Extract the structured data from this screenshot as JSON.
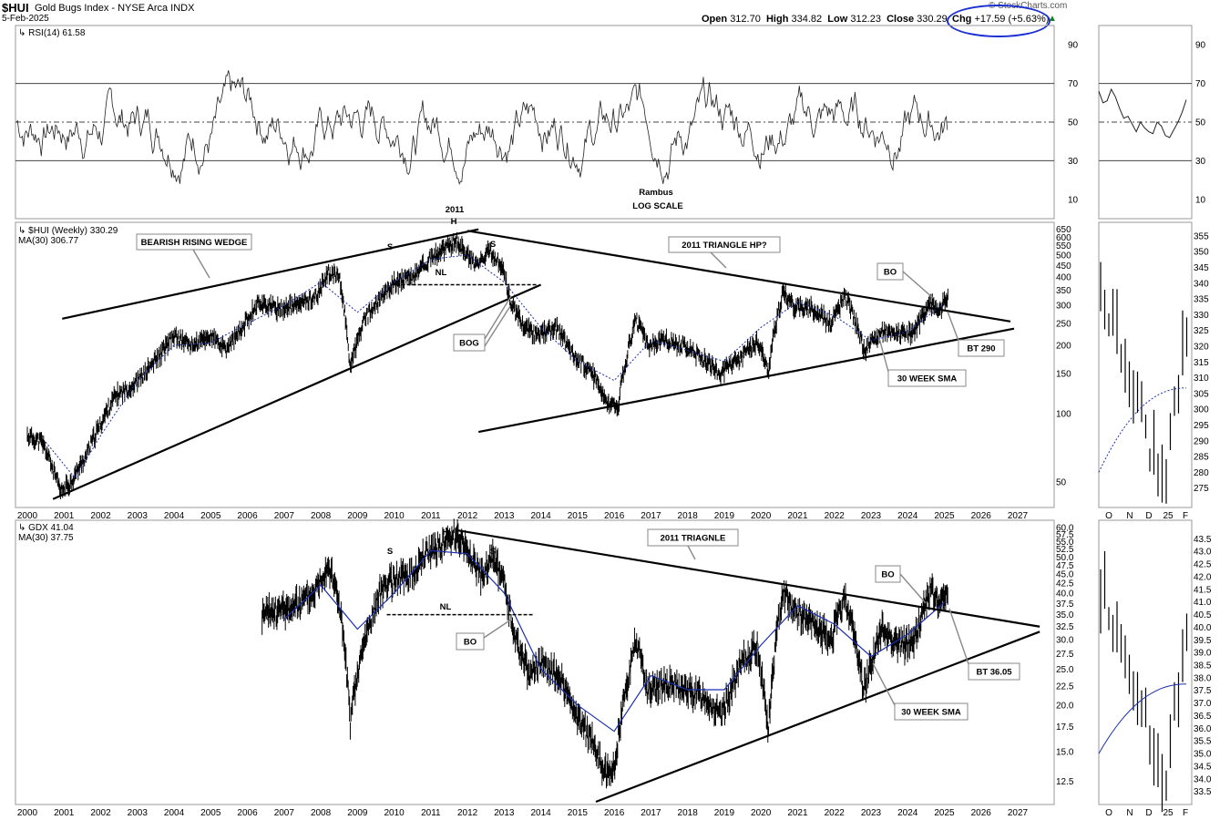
{
  "header": {
    "symbol": "$HUI",
    "description": "Gold Bugs Index - NYSE Arca INDX",
    "date": "5-Feb-2025",
    "open_label": "Open",
    "open": "312.70",
    "high_label": "High",
    "high": "334.82",
    "low_label": "Low",
    "low": "312.23",
    "close_label": "Close",
    "close": "330.29",
    "chg_label": "Chg",
    "chg": "+17.59 (+5.63%)",
    "brand": "© StockCharts.com",
    "accent_color": "#1a2fd0"
  },
  "chart_data": [
    {
      "type": "line",
      "panel": "rsi",
      "legend": "RSI(14) 61.58",
      "y_ticks": [
        90,
        70,
        50,
        30,
        10
      ],
      "ylim": [
        0,
        100
      ],
      "reference_lines": [
        70,
        50,
        30
      ],
      "annotations": [
        "Rambus",
        "LOG SCALE"
      ],
      "recent_values": [
        66,
        60,
        61,
        67,
        63,
        57,
        52,
        53,
        49,
        45,
        50,
        47,
        45,
        44,
        50,
        48,
        43,
        42,
        46,
        50,
        55,
        61.58
      ],
      "x_ticks": []
    },
    {
      "type": "ohlc",
      "panel": "hui",
      "legend": "$HUI (Weekly) 330.29",
      "ma_legend": "MA(30) 306.77",
      "scale": "log",
      "y_ticks": [
        650,
        600,
        550,
        500,
        450,
        400,
        350,
        300,
        250,
        200,
        150,
        100,
        50
      ],
      "ylim": [
        40,
        660
      ],
      "x_ticks": [
        "2000",
        "2001",
        "2002",
        "2003",
        "2004",
        "2005",
        "2006",
        "2007",
        "2008",
        "2009",
        "2010",
        "2011",
        "2012",
        "2013",
        "2014",
        "2015",
        "2016",
        "2017",
        "2018",
        "2019",
        "2020",
        "2021",
        "2022",
        "2023",
        "2024",
        "2025",
        "2026",
        "2027"
      ],
      "path_points": [
        [
          2000,
          80
        ],
        [
          2000.4,
          75
        ],
        [
          2000.9,
          45
        ],
        [
          2001.2,
          50
        ],
        [
          2001.6,
          65
        ],
        [
          2002,
          90
        ],
        [
          2002.4,
          120
        ],
        [
          2002.8,
          130
        ],
        [
          2003.2,
          150
        ],
        [
          2003.6,
          180
        ],
        [
          2004,
          220
        ],
        [
          2004.5,
          200
        ],
        [
          2005,
          220
        ],
        [
          2005.4,
          190
        ],
        [
          2005.8,
          230
        ],
        [
          2006.3,
          310
        ],
        [
          2006.8,
          290
        ],
        [
          2007.3,
          300
        ],
        [
          2007.9,
          330
        ],
        [
          2008.2,
          420
        ],
        [
          2008.5,
          400
        ],
        [
          2008.8,
          160
        ],
        [
          2009.2,
          260
        ],
        [
          2009.7,
          330
        ],
        [
          2010,
          380
        ],
        [
          2010.5,
          400
        ],
        [
          2010.9,
          470
        ],
        [
          2011.3,
          520
        ],
        [
          2011.7,
          580
        ],
        [
          2012,
          500
        ],
        [
          2012.3,
          450
        ],
        [
          2012.6,
          520
        ],
        [
          2012.9,
          460
        ],
        [
          2013.2,
          300
        ],
        [
          2013.5,
          250
        ],
        [
          2013.9,
          220
        ],
        [
          2014.4,
          240
        ],
        [
          2014.9,
          180
        ],
        [
          2015.4,
          150
        ],
        [
          2015.8,
          110
        ],
        [
          2016.1,
          105
        ],
        [
          2016.6,
          260
        ],
        [
          2016.9,
          200
        ],
        [
          2017.4,
          210
        ],
        [
          2017.9,
          200
        ],
        [
          2018.5,
          170
        ],
        [
          2018.9,
          150
        ],
        [
          2019.5,
          180
        ],
        [
          2019.9,
          210
        ],
        [
          2020.2,
          150
        ],
        [
          2020.6,
          340
        ],
        [
          2020.9,
          300
        ],
        [
          2021.4,
          290
        ],
        [
          2021.9,
          250
        ],
        [
          2022.3,
          330
        ],
        [
          2022.8,
          190
        ],
        [
          2023.3,
          230
        ],
        [
          2023.8,
          225
        ],
        [
          2024.2,
          230
        ],
        [
          2024.6,
          310
        ],
        [
          2024.9,
          290
        ],
        [
          2025.1,
          330.29
        ]
      ],
      "ma_points": [
        [
          2000.5,
          75
        ],
        [
          2001.3,
          52
        ],
        [
          2002,
          80
        ],
        [
          2003,
          140
        ],
        [
          2004,
          200
        ],
        [
          2005,
          205
        ],
        [
          2006,
          250
        ],
        [
          2007,
          300
        ],
        [
          2008,
          380
        ],
        [
          2009,
          280
        ],
        [
          2010,
          380
        ],
        [
          2011,
          480
        ],
        [
          2012,
          500
        ],
        [
          2013,
          380
        ],
        [
          2014,
          240
        ],
        [
          2015,
          170
        ],
        [
          2016,
          140
        ],
        [
          2017,
          210
        ],
        [
          2018,
          190
        ],
        [
          2019,
          170
        ],
        [
          2020,
          240
        ],
        [
          2021,
          310
        ],
        [
          2022,
          270
        ],
        [
          2023,
          210
        ],
        [
          2024,
          230
        ],
        [
          2025,
          306.77
        ]
      ],
      "trendlines": [
        {
          "label": "wedge-top",
          "from": [
            2000.95,
            262
          ],
          "to": [
            2012.3,
            650
          ]
        },
        {
          "label": "wedge-bottom",
          "from": [
            2000.7,
            42
          ],
          "to": [
            2014.0,
            370
          ]
        },
        {
          "label": "triangle-top",
          "from": [
            2012.0,
            640
          ],
          "to": [
            2026.8,
            255
          ]
        },
        {
          "label": "triangle-bottom",
          "from": [
            2012.3,
            83
          ],
          "to": [
            2026.9,
            237
          ]
        },
        {
          "label": "neckline",
          "from": [
            2009.9,
            370
          ],
          "to": [
            2013.9,
            370
          ]
        }
      ],
      "annotations": [
        {
          "text": "BEARISH RISING WEDGE",
          "boxed": true
        },
        {
          "text": "2011 TRIANGLE HP?",
          "boxed": true
        },
        {
          "text": "BOG",
          "boxed": true,
          "color": "#1a2fb0"
        },
        {
          "text": "BO",
          "boxed": true,
          "color": "#1a2fb0"
        },
        {
          "text": "BT 290",
          "boxed": true,
          "color": "#1a2fb0"
        },
        {
          "text": "30 WEEK SMA",
          "boxed": true,
          "color": "#1a2fb0"
        },
        {
          "text": "2011"
        },
        {
          "text": "H"
        },
        {
          "text": "S"
        },
        {
          "text": "S"
        },
        {
          "text": "NL"
        }
      ],
      "inset_y_ticks": [
        355,
        350,
        345,
        340,
        335,
        330,
        325,
        320,
        315,
        310,
        305,
        300,
        295,
        290,
        285,
        280,
        275
      ],
      "inset_x_ticks": [
        "O",
        "N",
        "D",
        "25",
        "F"
      ]
    },
    {
      "type": "ohlc",
      "panel": "gdx",
      "legend": "GDX 41.04",
      "ma_legend": "MA(30) 37.75",
      "scale": "log",
      "y_ticks": [
        "60.0",
        "57.5",
        "55.0",
        "52.5",
        "50.0",
        "47.5",
        "45.0",
        "42.5",
        "40.0",
        "37.5",
        "35.0",
        "32.5",
        "30.0",
        "27.5",
        "25.0",
        "22.5",
        "20.0",
        "17.5",
        "15.0",
        "12.5"
      ],
      "ylim": [
        11,
        61
      ],
      "x_ticks": [
        "2000",
        "2001",
        "2002",
        "2003",
        "2004",
        "2005",
        "2006",
        "2007",
        "2008",
        "2009",
        "2010",
        "2011",
        "2012",
        "2013",
        "2014",
        "2015",
        "2016",
        "2017",
        "2018",
        "2019",
        "2020",
        "2021",
        "2022",
        "2023",
        "2024",
        "2025",
        "2026",
        "2027"
      ],
      "path_points": [
        [
          2006.4,
          35
        ],
        [
          2006.9,
          36
        ],
        [
          2007.3,
          37
        ],
        [
          2007.8,
          40
        ],
        [
          2008.2,
          48
        ],
        [
          2008.5,
          38
        ],
        [
          2008.8,
          18
        ],
        [
          2009.2,
          30
        ],
        [
          2009.7,
          42
        ],
        [
          2010.1,
          44
        ],
        [
          2010.5,
          45
        ],
        [
          2010.9,
          52
        ],
        [
          2011.3,
          54
        ],
        [
          2011.7,
          58
        ],
        [
          2012,
          52
        ],
        [
          2012.4,
          44
        ],
        [
          2012.7,
          50
        ],
        [
          2013,
          42
        ],
        [
          2013.3,
          30
        ],
        [
          2013.7,
          24
        ],
        [
          2014,
          26
        ],
        [
          2014.5,
          24
        ],
        [
          2014.9,
          19
        ],
        [
          2015.4,
          16
        ],
        [
          2015.8,
          13
        ],
        [
          2016,
          13.5
        ],
        [
          2016.6,
          30
        ],
        [
          2016.9,
          22
        ],
        [
          2017.4,
          23
        ],
        [
          2017.9,
          22
        ],
        [
          2018.5,
          21
        ],
        [
          2018.9,
          18.5
        ],
        [
          2019.5,
          26
        ],
        [
          2019.9,
          29
        ],
        [
          2020.2,
          17
        ],
        [
          2020.6,
          41
        ],
        [
          2020.9,
          36
        ],
        [
          2021.4,
          33
        ],
        [
          2021.9,
          30
        ],
        [
          2022.3,
          39
        ],
        [
          2022.8,
          22
        ],
        [
          2023.3,
          32
        ],
        [
          2023.8,
          29
        ],
        [
          2024.2,
          30
        ],
        [
          2024.6,
          41
        ],
        [
          2024.9,
          37
        ],
        [
          2025.1,
          41.04
        ]
      ],
      "ma_points": [
        [
          2007,
          34
        ],
        [
          2008,
          42
        ],
        [
          2009,
          32
        ],
        [
          2010,
          40
        ],
        [
          2011,
          52
        ],
        [
          2012,
          51
        ],
        [
          2013,
          40
        ],
        [
          2014,
          25
        ],
        [
          2015,
          20
        ],
        [
          2016,
          17
        ],
        [
          2017,
          24
        ],
        [
          2018,
          22
        ],
        [
          2019,
          22
        ],
        [
          2020,
          29
        ],
        [
          2021,
          37
        ],
        [
          2022,
          33
        ],
        [
          2023,
          27
        ],
        [
          2024,
          31
        ],
        [
          2025,
          37.75
        ]
      ],
      "trendlines": [
        {
          "label": "triangle-top",
          "from": [
            2011.7,
            59
          ],
          "to": [
            2027.6,
            32.5
          ]
        },
        {
          "label": "triangle-bottom",
          "from": [
            2015.5,
            11
          ],
          "to": [
            2027.6,
            31.5
          ]
        },
        {
          "label": "neckline",
          "from": [
            2009.8,
            35
          ],
          "to": [
            2013.8,
            35
          ]
        }
      ],
      "annotations": [
        {
          "text": "2011 TRIAGNLE",
          "boxed": true
        },
        {
          "text": "BO",
          "boxed": true,
          "color": "#1a2fb0"
        },
        {
          "text": "BO",
          "boxed": true,
          "color": "#1a2fb0"
        },
        {
          "text": "BT 36.05",
          "boxed": true,
          "color": "#1a2fb0"
        },
        {
          "text": "30 WEEK SMA",
          "boxed": true,
          "color": "#1a2fb0"
        },
        {
          "text": "H"
        },
        {
          "text": "S"
        },
        {
          "text": "S"
        },
        {
          "text": "NL"
        }
      ],
      "inset_y_ticks": [
        "43.5",
        "43.0",
        "42.5",
        "42.0",
        "41.5",
        "41.0",
        "40.5",
        "40.0",
        "39.5",
        "39.0",
        "38.5",
        "38.0",
        "37.5",
        "37.0",
        "36.5",
        "36.0",
        "35.5",
        "35.0",
        "34.5",
        "34.0",
        "33.5"
      ],
      "inset_x_ticks": [
        "O",
        "N",
        "D",
        "25",
        "F"
      ]
    }
  ]
}
